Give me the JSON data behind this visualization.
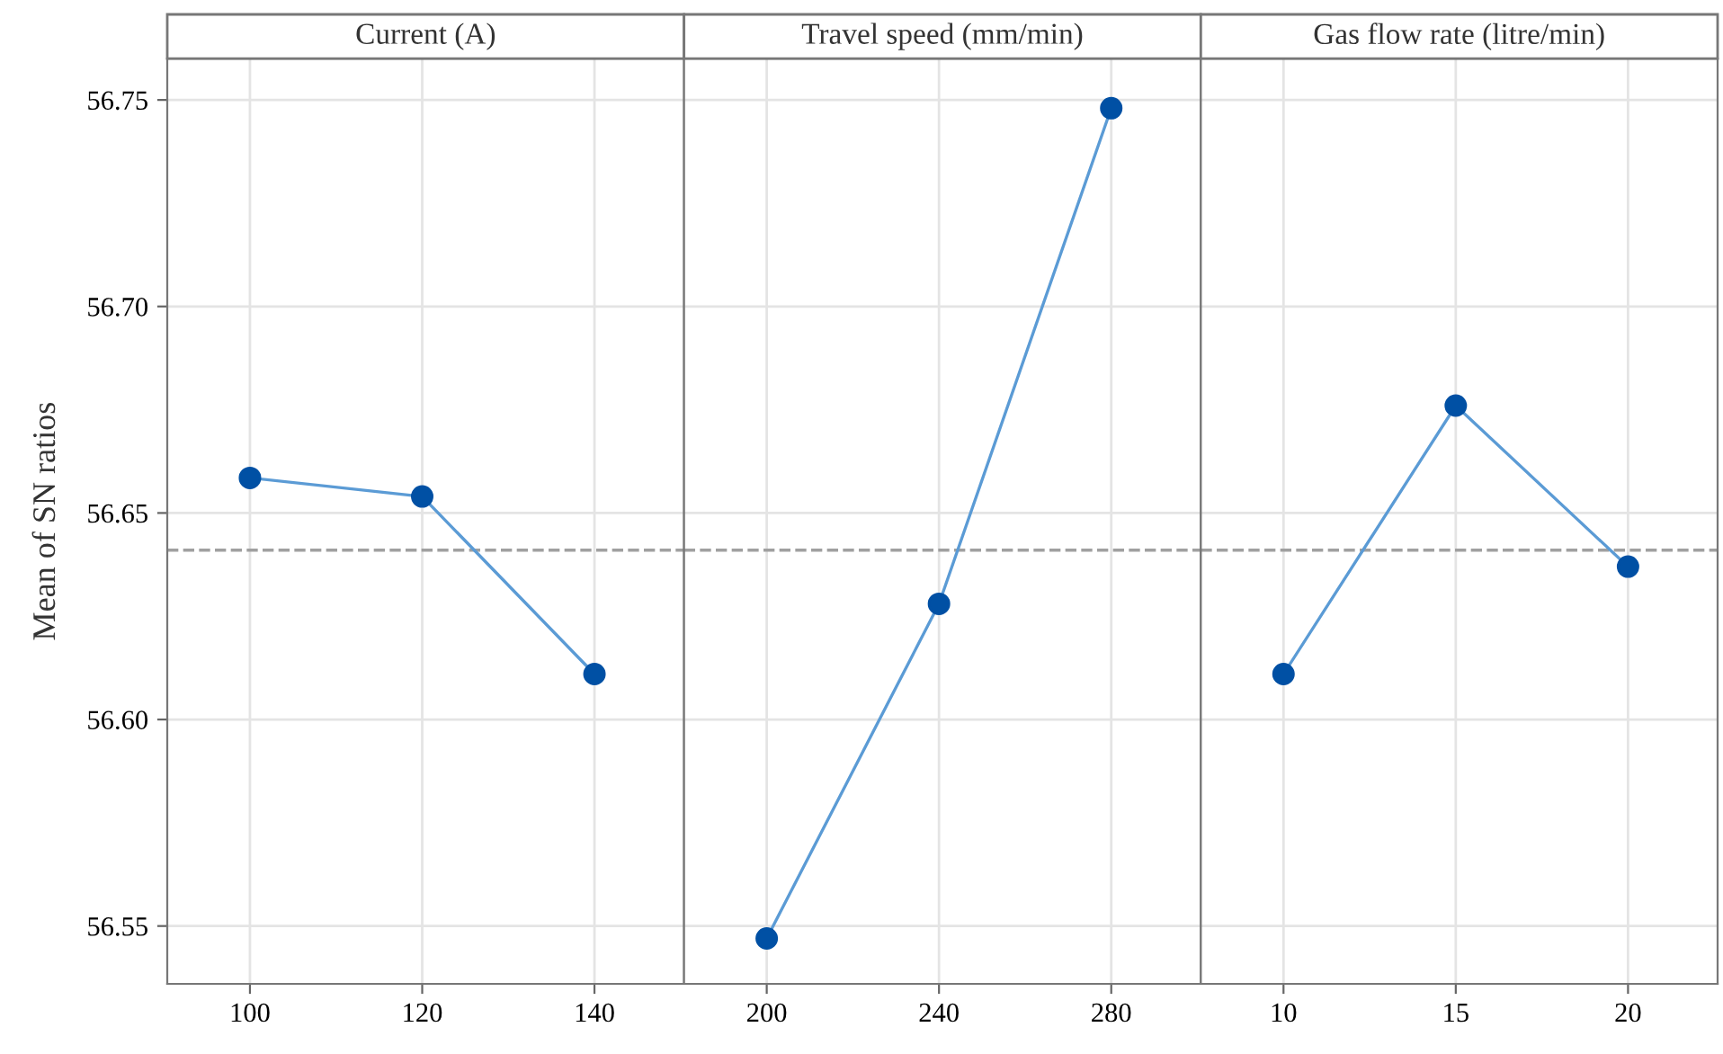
{
  "chart_data": [
    {
      "type": "line",
      "title": "Current (A)",
      "ylabel": "Mean of SN ratios",
      "categories": [
        "100",
        "120",
        "140"
      ],
      "series": [
        {
          "color": "#0050a4",
          "values": [
            56.6585,
            56.654,
            56.611
          ]
        }
      ],
      "ylim": [
        56.536,
        56.76
      ],
      "yticks": [
        {
          "value": 56.55,
          "label": "56.55"
        },
        {
          "value": 56.6,
          "label": "56.60"
        },
        {
          "value": 56.65,
          "label": "56.65"
        },
        {
          "value": 56.7,
          "label": "56.70"
        },
        {
          "value": 56.75,
          "label": "56.75"
        }
      ],
      "ref_lines": [
        {
          "axis": "y",
          "value": 56.641,
          "color": "#a0a0a0",
          "line_style": "dashed"
        }
      ],
      "grid": true,
      "marker": "circle",
      "line_style": "solid"
    },
    {
      "type": "line",
      "title": "Travel speed (mm/min)",
      "categories": [
        "200",
        "240",
        "280"
      ],
      "series": [
        {
          "color": "#0050a4",
          "values": [
            56.547,
            56.628,
            56.748
          ]
        }
      ],
      "ylim": [
        56.536,
        56.76
      ],
      "yticks": [
        {
          "value": 56.55,
          "label": null
        },
        {
          "value": 56.6,
          "label": null
        },
        {
          "value": 56.65,
          "label": null
        },
        {
          "value": 56.7,
          "label": null
        },
        {
          "value": 56.75,
          "label": null
        }
      ],
      "ref_lines": [
        {
          "axis": "y",
          "value": 56.641,
          "color": "#a0a0a0",
          "line_style": "dashed"
        }
      ],
      "grid": true,
      "marker": "circle",
      "line_style": "solid",
      "tick_labels": "x"
    },
    {
      "type": "line",
      "title": "Gas flow rate (litre/min)",
      "categories": [
        "10",
        "15",
        "20"
      ],
      "series": [
        {
          "color": "#0050a4",
          "values": [
            56.611,
            56.676,
            56.637
          ]
        }
      ],
      "ylim": [
        56.536,
        56.76
      ],
      "yticks": [
        {
          "value": 56.55,
          "label": null
        },
        {
          "value": 56.6,
          "label": null
        },
        {
          "value": 56.65,
          "label": null
        },
        {
          "value": 56.7,
          "label": null
        },
        {
          "value": 56.75,
          "label": null
        }
      ],
      "ref_lines": [
        {
          "axis": "y",
          "value": 56.641,
          "color": "#a0a0a0",
          "line_style": "dashed"
        }
      ],
      "grid": true,
      "marker": "circle",
      "line_style": "solid",
      "tick_labels": "x"
    }
  ]
}
